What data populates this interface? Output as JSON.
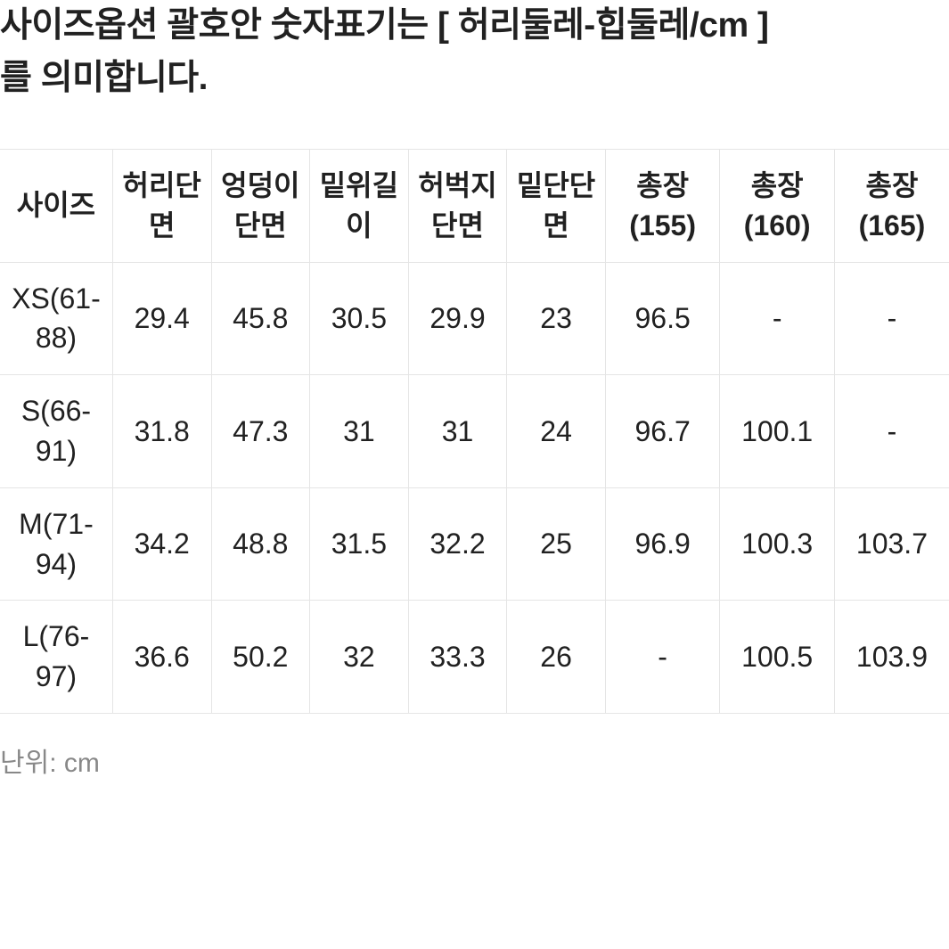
{
  "heading_line1": "사이즈옵션 괄호안 숫자표기는 [ 허리둘레-힙둘레/cm ]",
  "heading_line2": "를 의미합니다.",
  "unit_label": "난위: cm",
  "table": {
    "columns": [
      "사이즈",
      "허리단면",
      "엉덩이단면",
      "밑위길이",
      "허벅지단면",
      "밑단단면",
      "총장(155)",
      "총장(160)",
      "총장(165)"
    ],
    "rows": [
      [
        "XS(61-88)",
        "29.4",
        "45.8",
        "30.5",
        "29.9",
        "23",
        "96.5",
        "-",
        "-"
      ],
      [
        "S(66-91)",
        "31.8",
        "47.3",
        "31",
        "31",
        "24",
        "96.7",
        "100.1",
        "-"
      ],
      [
        "M(71-94)",
        "34.2",
        "48.8",
        "31.5",
        "32.2",
        "25",
        "96.9",
        "100.3",
        "103.7"
      ],
      [
        "L(76-97)",
        "36.6",
        "50.2",
        "32",
        "33.3",
        "26",
        "-",
        "100.5",
        "103.9"
      ]
    ]
  },
  "styling": {
    "border_color": "#e5e5e5",
    "text_color": "#212121",
    "unit_color": "#888888",
    "background_color": "#ffffff",
    "heading_fontsize": 39,
    "cell_fontsize": 32,
    "unit_fontsize": 30
  }
}
